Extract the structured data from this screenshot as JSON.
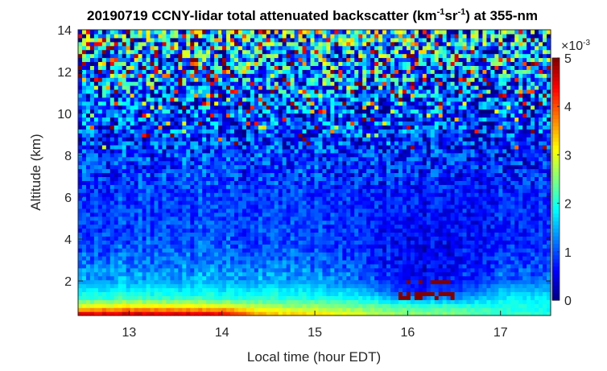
{
  "chart_data": {
    "type": "heatmap",
    "title": {
      "main": "20190719 CCNY-lidar total attenuated backscatter (km",
      "sup1": "-1",
      "mid": "sr",
      "sup2": "-1",
      "end": ") at 355-nm"
    },
    "xlabel": "Local time (hour EDT)",
    "ylabel": "Altitude (km)",
    "xlim": [
      12.45,
      17.54
    ],
    "ylim": [
      0.35,
      14
    ],
    "xticks": [
      "13",
      "14",
      "15",
      "16",
      "17"
    ],
    "yticks": [
      "2",
      "4",
      "6",
      "8",
      "10",
      "12",
      "14"
    ],
    "colormap": "jet",
    "colorbar": {
      "range": [
        0,
        5
      ],
      "ticks": [
        "0",
        "1",
        "2",
        "3",
        "4",
        "5"
      ],
      "exponent_label": "×10",
      "exponent": "-3"
    },
    "grid": false,
    "approx_mean_field_e-3": {
      "time": [
        12.5,
        13.0,
        13.5,
        14.0,
        14.5,
        15.0,
        15.5,
        16.0,
        16.5,
        17.0,
        17.5
      ],
      "altitude": [
        0.4,
        0.8,
        1.2,
        1.6,
        2.0,
        3.0,
        4.0,
        6.0,
        8.0,
        10.0,
        12.0,
        14.0
      ],
      "values": [
        [
          4.6,
          4.7,
          4.6,
          4.6,
          3.4,
          3.3,
          3.0,
          2.6,
          2.5,
          2.2,
          2.0
        ],
        [
          3.0,
          3.2,
          3.1,
          3.0,
          2.7,
          2.6,
          2.4,
          2.2,
          2.1,
          2.0,
          1.9
        ],
        [
          2.1,
          2.2,
          2.1,
          2.1,
          2.1,
          2.0,
          1.9,
          1.3,
          1.3,
          1.8,
          1.8
        ],
        [
          1.8,
          1.8,
          1.8,
          1.8,
          1.8,
          1.7,
          1.5,
          0.7,
          0.8,
          1.5,
          1.5
        ],
        [
          1.5,
          1.5,
          1.5,
          1.5,
          1.5,
          1.4,
          1.2,
          0.6,
          0.7,
          1.1,
          1.1
        ],
        [
          1.2,
          1.2,
          1.2,
          1.2,
          1.2,
          1.1,
          1.0,
          0.5,
          0.6,
          0.9,
          0.9
        ],
        [
          1.0,
          1.0,
          1.0,
          1.0,
          1.0,
          0.95,
          0.9,
          0.5,
          0.6,
          0.8,
          0.8
        ],
        [
          0.95,
          0.95,
          0.95,
          0.95,
          0.9,
          0.9,
          0.85,
          0.7,
          0.7,
          0.75,
          0.75
        ],
        [
          0.9,
          0.9,
          0.9,
          0.9,
          0.9,
          0.85,
          0.85,
          0.75,
          0.75,
          0.75,
          0.75
        ],
        [
          1.0,
          1.0,
          1.0,
          1.0,
          1.0,
          1.0,
          1.0,
          0.9,
          0.9,
          0.9,
          0.9
        ],
        [
          1.3,
          1.3,
          1.3,
          1.3,
          1.3,
          1.3,
          1.3,
          1.2,
          1.2,
          1.2,
          1.2
        ],
        [
          1.6,
          1.6,
          1.6,
          1.6,
          1.6,
          1.6,
          1.6,
          1.5,
          1.5,
          1.5,
          1.5
        ]
      ]
    },
    "cloud_features": [
      {
        "time_range": [
          15.9,
          16.5
        ],
        "altitude_range": [
          1.2,
          2.0
        ],
        "peak_value_e-3": 5
      }
    ]
  }
}
